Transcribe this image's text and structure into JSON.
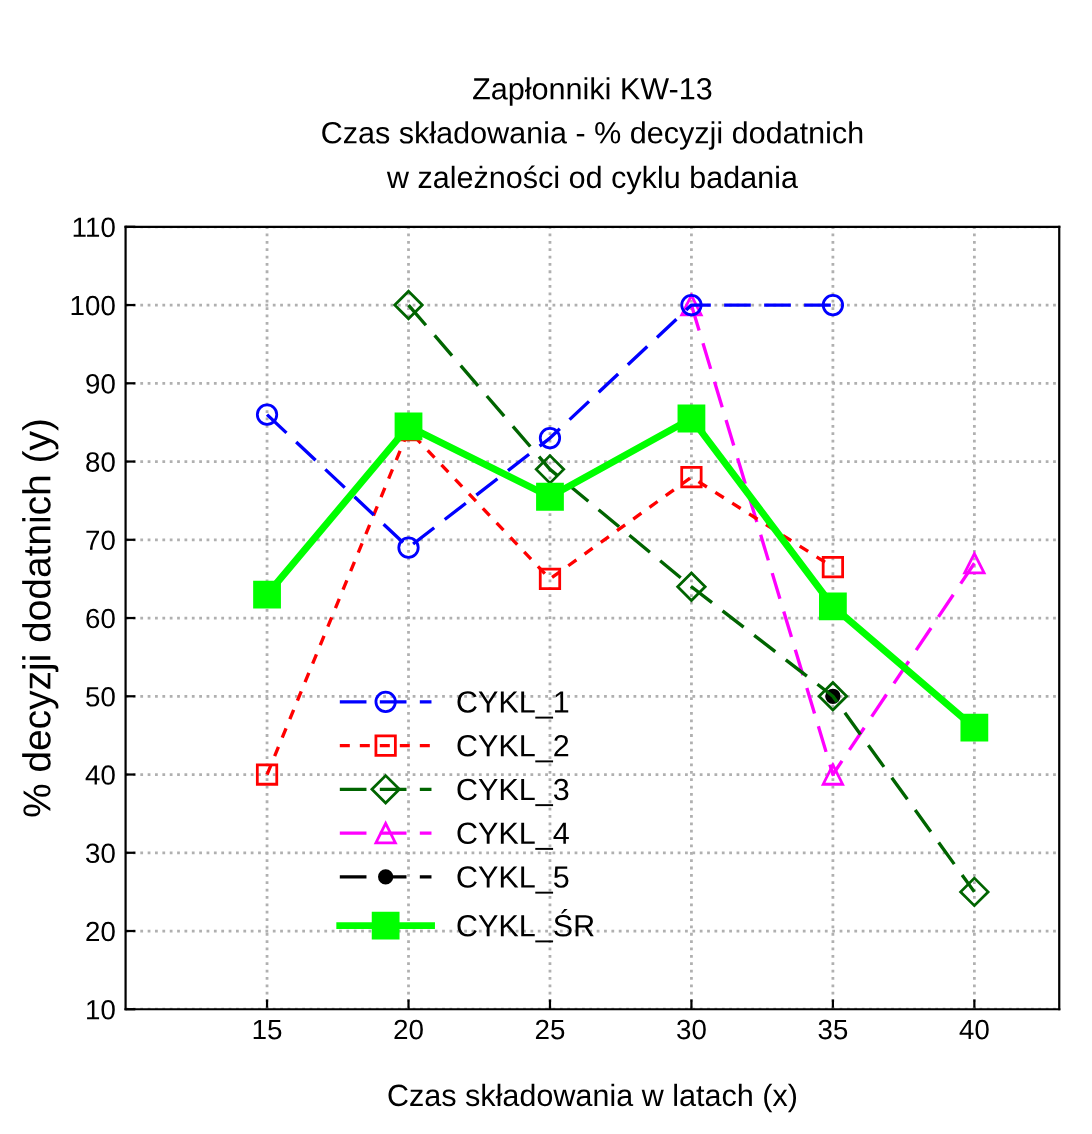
{
  "chart_data": {
    "type": "line",
    "title": "Zapłonniki KW-13\nCzas składowania - % decyzji dodatnich\nw zależności od cyklu badania",
    "xlabel": "Czas składowania w latach (x)",
    "ylabel": "% decyzji dodatnich (y)",
    "x": [
      15,
      20,
      25,
      30,
      35,
      40
    ],
    "xlim": [
      10,
      43
    ],
    "xticks": [
      15,
      20,
      25,
      30,
      35,
      40
    ],
    "ylim": [
      10,
      110
    ],
    "yticks": [
      10,
      20,
      30,
      40,
      50,
      60,
      70,
      80,
      90,
      100,
      110
    ],
    "grid": true,
    "legend": "bottom left",
    "series": [
      {
        "name": "CYKL_1",
        "color": "#0000ff",
        "marker": "circle",
        "line_style": "dashed",
        "values": [
          86,
          69,
          83,
          100,
          100,
          null
        ]
      },
      {
        "name": "CYKL_2",
        "color": "#ff0000",
        "marker": "square",
        "line_style": "dotted",
        "values": [
          40,
          84,
          65,
          78,
          66.5,
          null
        ]
      },
      {
        "name": "CYKL_3",
        "color": "#006400",
        "marker": "diamond",
        "line_style": "dashed",
        "values": [
          null,
          100,
          79,
          64,
          50,
          25
        ]
      },
      {
        "name": "CYKL_4",
        "color": "#ff00ff",
        "marker": "triangle",
        "line_style": "dashed",
        "values": [
          null,
          null,
          null,
          100,
          40,
          67
        ]
      },
      {
        "name": "CYKL_5",
        "color": "#000000",
        "marker": "circle",
        "line_style": "dashed",
        "values": [
          null,
          null,
          null,
          null,
          50,
          null
        ]
      },
      {
        "name": "CYKL_ŚR",
        "color": "#00ff00",
        "marker": "square",
        "line_style": "solid",
        "values": [
          63,
          84.5,
          75.5,
          85.5,
          61.5,
          46
        ]
      }
    ]
  }
}
